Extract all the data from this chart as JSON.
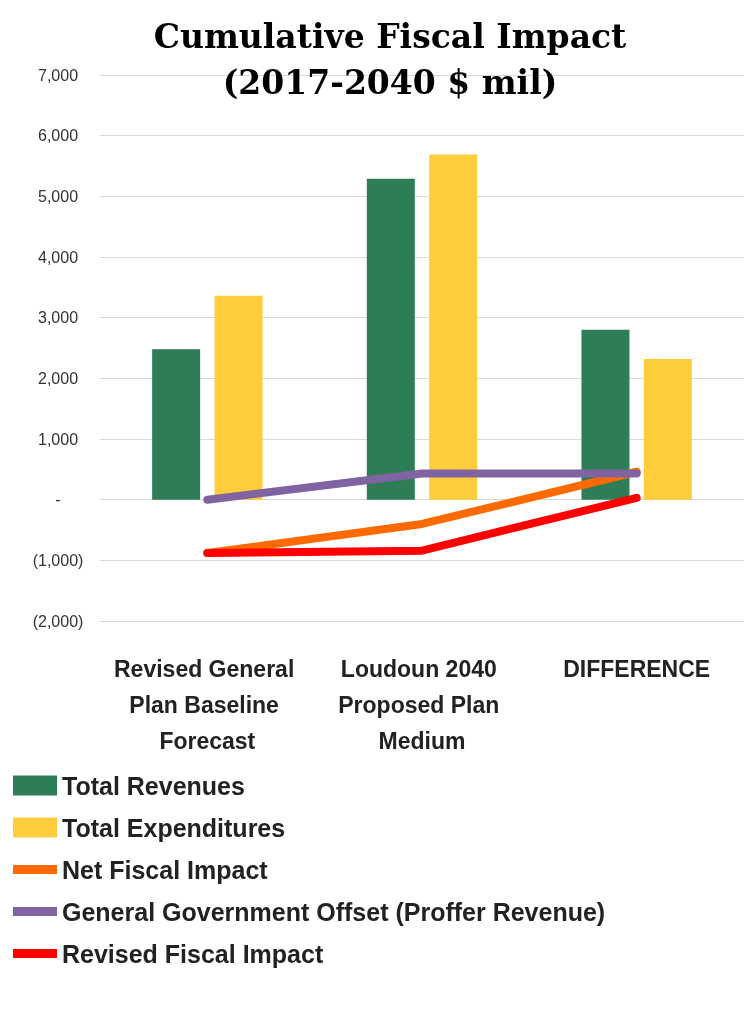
{
  "chart_data": {
    "type": "bar",
    "title": "Cumulative Fiscal Impact\n(2017-2040 $ mil)",
    "categories": [
      "Revised General Plan Baseline Forecast",
      "Loudoun 2040 Proposed Plan Medium",
      "DIFFERENCE"
    ],
    "series": [
      {
        "name": "Total Revenues",
        "color": "#2e7d57",
        "values": [
          2480,
          5290,
          2800
        ]
      },
      {
        "name": "Total Expenditures",
        "color": "#ffcd3c",
        "values": [
          3360,
          5690,
          2320
        ]
      },
      {
        "name": "Net Fiscal Impact",
        "type": "line",
        "color": "#ff6a00",
        "values": [
          -880,
          -400,
          460
        ]
      },
      {
        "name": "General Government Offset (Proffer Revenue)",
        "type": "line",
        "color": "#8064a2",
        "values": [
          0,
          430,
          430
        ]
      },
      {
        "name": "Revised Fiscal Impact",
        "type": "line",
        "color": "#ff0000",
        "values": [
          -880,
          -840,
          30
        ]
      }
    ],
    "ylim": [
      -2000,
      7000
    ],
    "yticks": [
      {
        "value": -2000,
        "label": "(2,000)"
      },
      {
        "value": -1000,
        "label": "(1,000)"
      },
      {
        "value": 0,
        "label": "-"
      },
      {
        "value": 1000,
        "label": "1,000"
      },
      {
        "value": 2000,
        "label": "2,000"
      },
      {
        "value": 3000,
        "label": "3,000"
      },
      {
        "value": 4000,
        "label": "4,000"
      },
      {
        "value": 5000,
        "label": "5,000"
      },
      {
        "value": 6000,
        "label": "6,000"
      },
      {
        "value": 7000,
        "label": "7,000"
      }
    ],
    "grid": "y",
    "legend": "bottom",
    "marker": "none",
    "line_style": "solid"
  }
}
